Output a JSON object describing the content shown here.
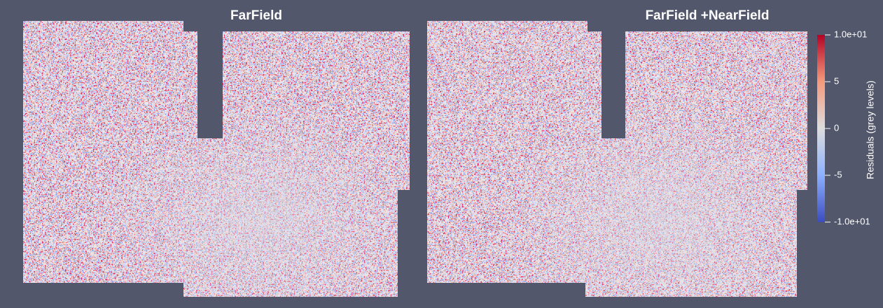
{
  "panels": [
    {
      "title": "FarField"
    },
    {
      "title": "FarField +NearField"
    }
  ],
  "colorbar": {
    "title": "Residuals (grey levels)",
    "range": [
      -10,
      10
    ],
    "ticks": [
      {
        "value": 10,
        "label": "1.0e+01"
      },
      5,
      0,
      -5,
      {
        "value": -10,
        "label": "-1.0e+01"
      }
    ]
  }
}
